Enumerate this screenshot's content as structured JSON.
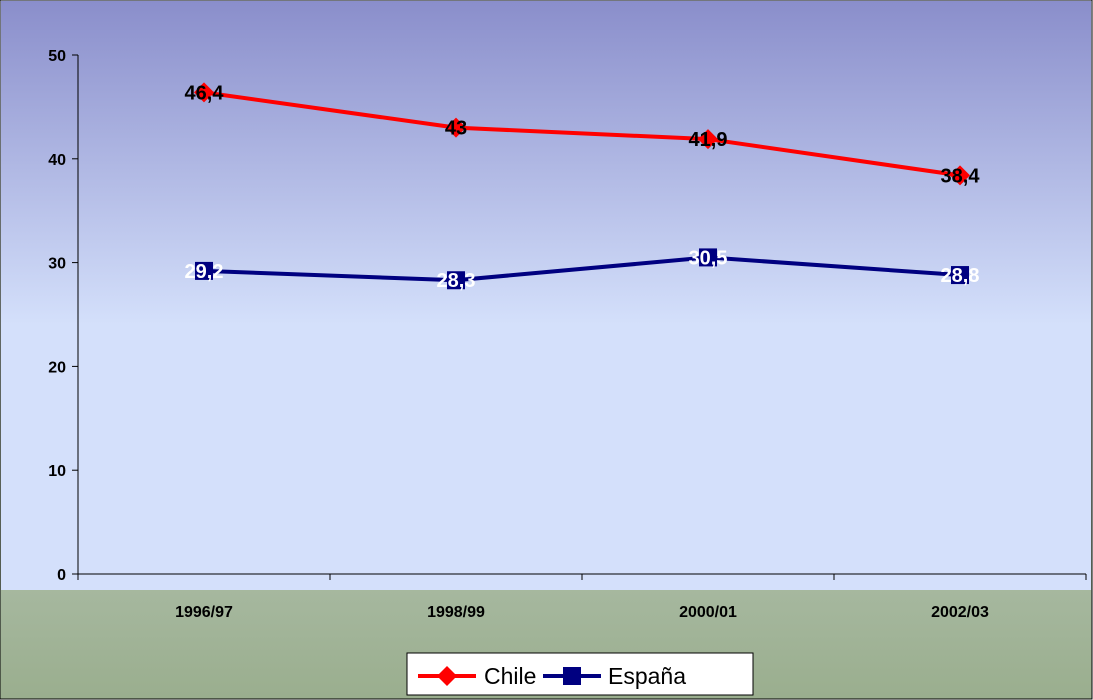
{
  "chart_data": {
    "type": "line",
    "categories": [
      "1996/97",
      "1998/99",
      "2000/01",
      "2002/03"
    ],
    "series": [
      {
        "name": "Chile",
        "values": [
          46.4,
          43,
          41.9,
          38.4
        ],
        "labels": [
          "46,4",
          "43",
          "41,9",
          "38,4"
        ],
        "color": "#ff0000",
        "marker": "diamond",
        "label_color": "#000000"
      },
      {
        "name": "España",
        "values": [
          29.2,
          28.3,
          30.5,
          28.8
        ],
        "labels": [
          "29,2",
          "28,3",
          "30,5",
          "28,8"
        ],
        "color": "#000080",
        "marker": "square",
        "label_color": "#ffffff"
      }
    ],
    "ylim": [
      0,
      50
    ],
    "yticks": [
      0,
      10,
      20,
      30,
      40,
      50
    ],
    "grid": false,
    "legend": "bottom-center",
    "plot_background": [
      "#8a8ecb",
      "#d4e0fb"
    ],
    "outer_background": [
      "#e6ecf8",
      "#9aae8e"
    ]
  }
}
